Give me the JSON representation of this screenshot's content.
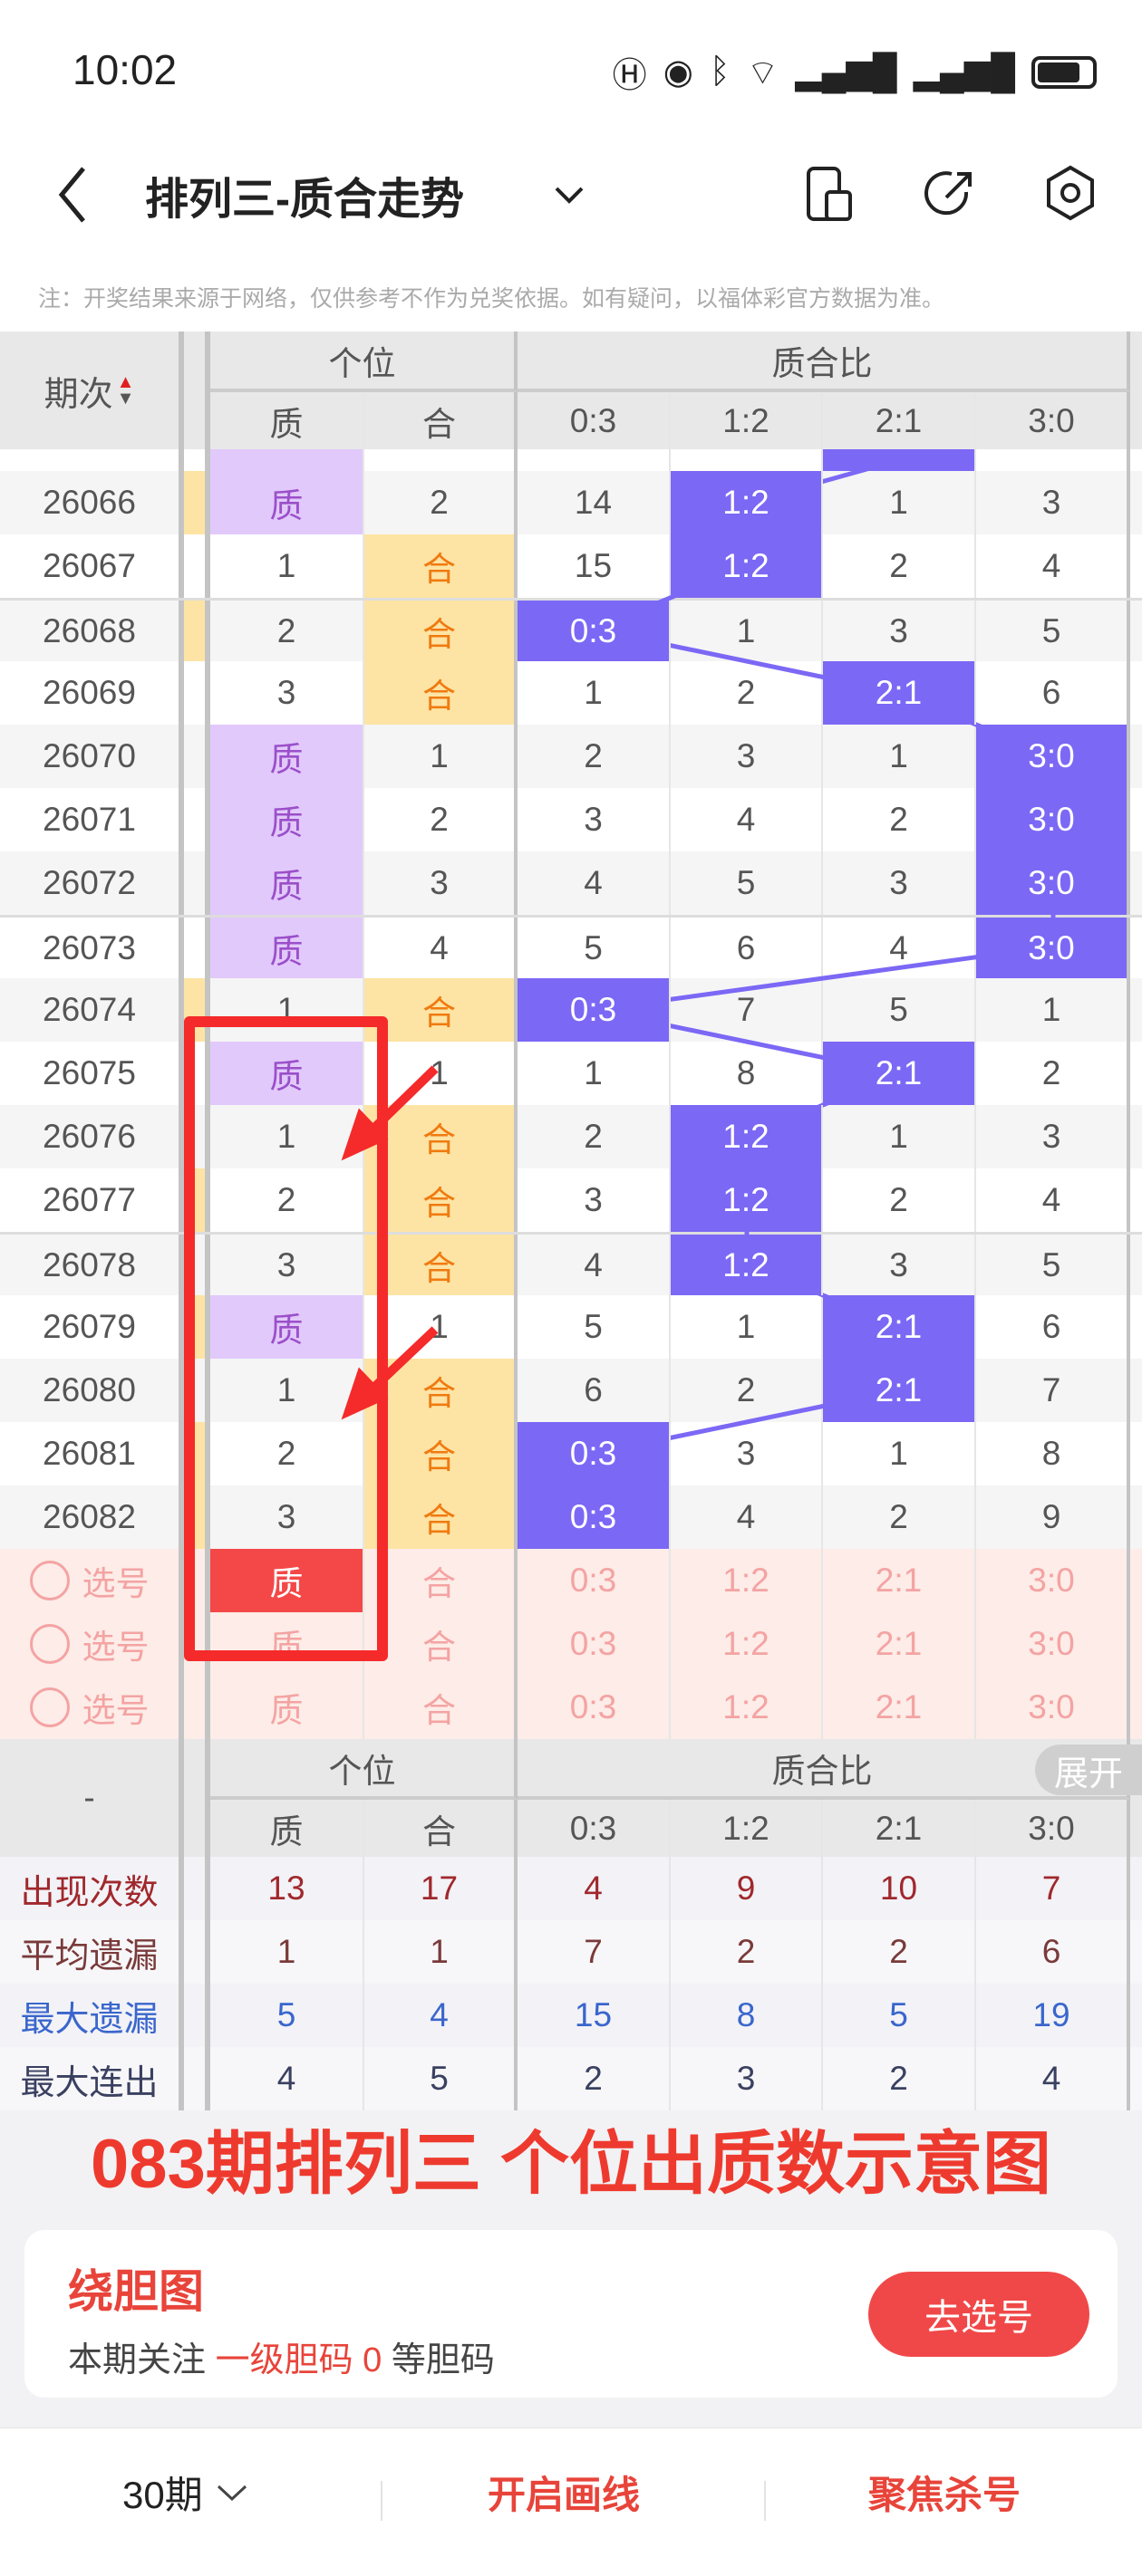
{
  "status": {
    "time": "10:02",
    "icons": [
      "hd-icon",
      "eye-icon",
      "bluetooth-icon",
      "wifi-icon",
      "signal-icon",
      "signal-icon",
      "battery-icon"
    ]
  },
  "nav": {
    "title": "排列三-质合走势",
    "icons": [
      "back-icon",
      "chevron-down-icon",
      "phone-split-icon",
      "share-icon",
      "settings-hexagon-icon"
    ]
  },
  "notice": "注：开奖结果来源于网络，仅供参考不作为兑奖依据。如有疑问，以福体彩官方数据为准。",
  "table": {
    "period_header": "期次",
    "group1": "个位",
    "group2": "质合比",
    "columns": [
      "质",
      "合",
      "0:3",
      "1:2",
      "2:1",
      "3:0"
    ],
    "colors": {
      "prime_bg": "#e1c9fb",
      "composite_bg": "#fde4a4",
      "ratio_hit": "#7b68f5",
      "select_red": "#f44848"
    },
    "rows": [
      {
        "period": "26066",
        "strip": true,
        "cells": [
          "质",
          "2",
          "14",
          "1:2",
          "1",
          "3"
        ]
      },
      {
        "period": "26067",
        "strip": false,
        "cells": [
          "1",
          "合",
          "15",
          "1:2",
          "2",
          "4"
        ]
      },
      {
        "period": "26068",
        "strip": true,
        "cells": [
          "2",
          "合",
          "0:3",
          "1",
          "3",
          "5"
        ]
      },
      {
        "period": "26069",
        "strip": false,
        "cells": [
          "3",
          "合",
          "1",
          "2",
          "2:1",
          "6"
        ]
      },
      {
        "period": "26070",
        "strip": false,
        "cells": [
          "质",
          "1",
          "2",
          "3",
          "1",
          "3:0"
        ]
      },
      {
        "period": "26071",
        "strip": false,
        "cells": [
          "质",
          "2",
          "3",
          "4",
          "2",
          "3:0"
        ]
      },
      {
        "period": "26072",
        "strip": false,
        "cells": [
          "质",
          "3",
          "4",
          "5",
          "3",
          "3:0"
        ]
      },
      {
        "period": "26073",
        "strip": false,
        "cells": [
          "质",
          "4",
          "5",
          "6",
          "4",
          "3:0"
        ]
      },
      {
        "period": "26074",
        "strip": true,
        "cells": [
          "1",
          "合",
          "0:3",
          "7",
          "5",
          "1"
        ]
      },
      {
        "period": "26075",
        "strip": false,
        "cells": [
          "质",
          "1",
          "1",
          "8",
          "2:1",
          "2"
        ]
      },
      {
        "period": "26076",
        "strip": false,
        "cells": [
          "1",
          "合",
          "2",
          "1:2",
          "1",
          "3"
        ]
      },
      {
        "period": "26077",
        "strip": true,
        "cells": [
          "2",
          "合",
          "3",
          "1:2",
          "2",
          "4"
        ]
      },
      {
        "period": "26078",
        "strip": false,
        "cells": [
          "3",
          "合",
          "4",
          "1:2",
          "3",
          "5"
        ]
      },
      {
        "period": "26079",
        "strip": true,
        "cells": [
          "质",
          "1",
          "5",
          "1",
          "2:1",
          "6"
        ]
      },
      {
        "period": "26080",
        "strip": false,
        "cells": [
          "1",
          "合",
          "6",
          "2",
          "2:1",
          "7"
        ]
      },
      {
        "period": "26081",
        "strip": true,
        "cells": [
          "2",
          "合",
          "0:3",
          "3",
          "1",
          "8"
        ]
      },
      {
        "period": "26082",
        "strip": true,
        "cells": [
          "3",
          "合",
          "0:3",
          "4",
          "2",
          "9"
        ]
      }
    ],
    "select_label": "选号",
    "select_rows": [
      {
        "cells": [
          "质",
          "合",
          "0:3",
          "1:2",
          "2:1",
          "3:0"
        ],
        "selected": 0
      },
      {
        "cells": [
          "质",
          "合",
          "0:3",
          "1:2",
          "2:1",
          "3:0"
        ],
        "selected": -1
      },
      {
        "cells": [
          "质",
          "合",
          "0:3",
          "1:2",
          "2:1",
          "3:0"
        ],
        "selected": -1
      }
    ]
  },
  "stats": {
    "dash": "-",
    "expand": "展开",
    "rows": [
      {
        "label": "出现次数",
        "color": "#a0282c",
        "values": [
          "13",
          "17",
          "4",
          "9",
          "10",
          "7"
        ]
      },
      {
        "label": "平均遗漏",
        "color": "#7a3a3a",
        "values": [
          "1",
          "1",
          "7",
          "2",
          "2",
          "6"
        ]
      },
      {
        "label": "最大遗漏",
        "color": "#3a66cc",
        "values": [
          "5",
          "4",
          "15",
          "8",
          "5",
          "19"
        ]
      },
      {
        "label": "最大连出",
        "color": "#3a4060",
        "values": [
          "4",
          "5",
          "2",
          "3",
          "2",
          "4"
        ]
      }
    ]
  },
  "card": {
    "title": "绕胆图",
    "text_pre": "本期关注 ",
    "highlight": "一级胆码 0",
    "text_post": " 等胆码",
    "button": "去选号"
  },
  "bottom": {
    "periods": "30期",
    "draw": "开启画线",
    "focus": "聚焦杀号"
  },
  "annotation": {
    "line1": "083期排列三",
    "line2": "个位出质数示意图",
    "color": "#ee3a2e"
  }
}
